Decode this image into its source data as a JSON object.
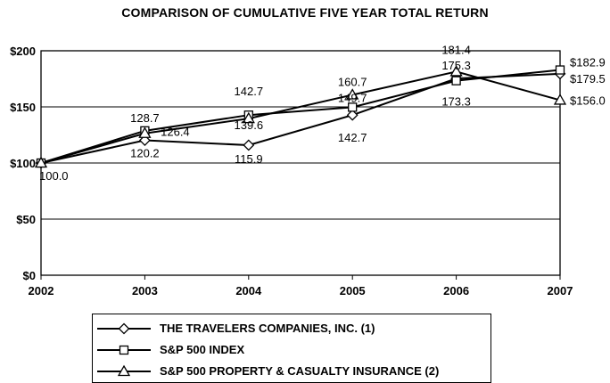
{
  "chart_data": {
    "type": "line",
    "title": "COMPARISON OF CUMULATIVE FIVE YEAR TOTAL RETURN",
    "x": [
      "2002",
      "2003",
      "2004",
      "2005",
      "2006",
      "2007"
    ],
    "ylim": [
      0,
      200
    ],
    "yticks": [
      "$0",
      "$50",
      "$100",
      "$150",
      "$200"
    ],
    "grid": true,
    "legend_position": "bottom",
    "series": [
      {
        "name": "THE TRAVELERS COMPANIES, INC. (1)",
        "marker": "diamond",
        "values": [
          100.0,
          120.2,
          115.9,
          142.7,
          175.3,
          179.5
        ],
        "labels": [
          "100.0",
          "120.2",
          "115.9",
          "142.7",
          "175.3",
          "$179.5"
        ]
      },
      {
        "name": "S&P 500 INDEX",
        "marker": "square",
        "values": [
          100.0,
          128.7,
          142.7,
          149.7,
          173.3,
          182.9
        ],
        "labels": [
          "",
          "128.7",
          "142.7",
          "149.7",
          "173.3",
          "$182.9"
        ]
      },
      {
        "name": "S&P 500 PROPERTY & CASUALTY INSURANCE (2)",
        "marker": "triangle",
        "values": [
          100.0,
          126.4,
          139.6,
          160.7,
          181.4,
          156.0
        ],
        "labels": [
          "",
          "126.4",
          "139.6",
          "160.7",
          "181.4",
          "$156.0"
        ]
      }
    ]
  }
}
